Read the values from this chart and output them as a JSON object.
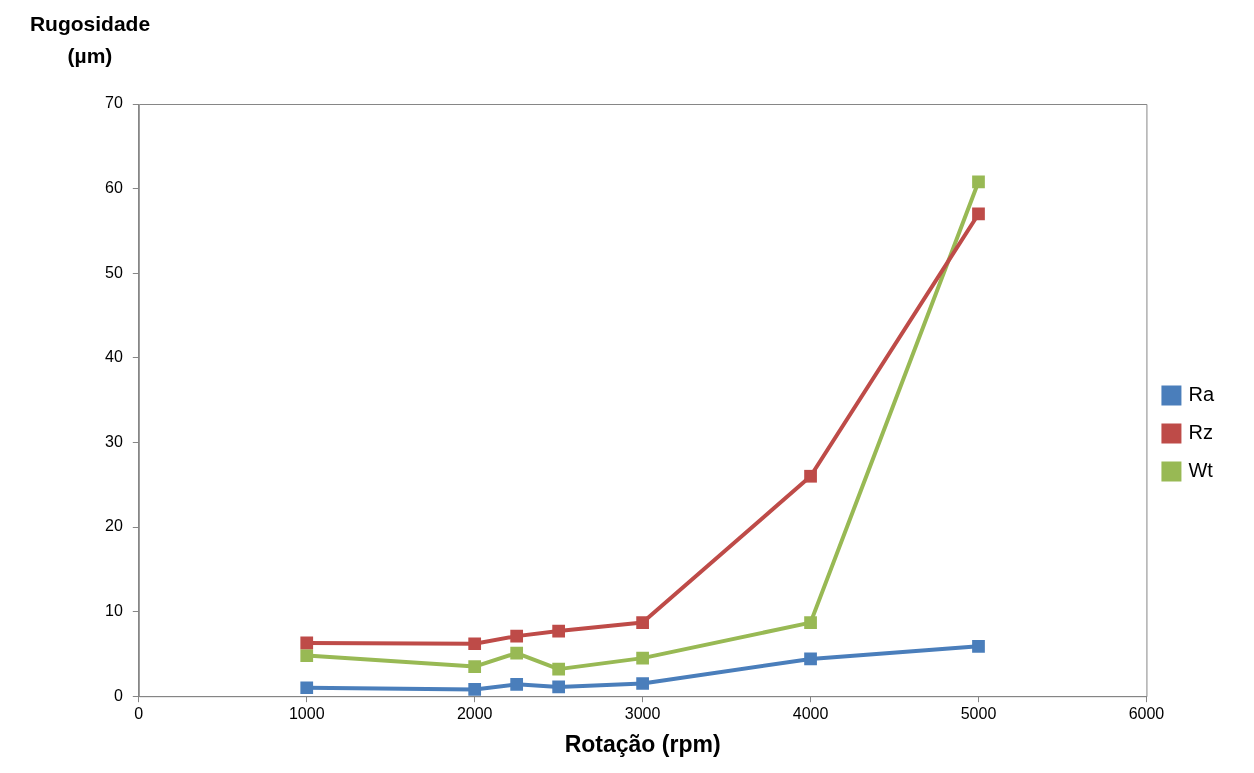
{
  "chart_data": {
    "type": "line",
    "xlabel": "Rotação (rpm)",
    "ylabel": "Rugosidade (µm)",
    "x": [
      1000,
      2000,
      2250,
      2500,
      3000,
      4000,
      5000
    ],
    "series": [
      {
        "name": "Ra",
        "color": "#4a7ebb",
        "values": [
          1.0,
          0.8,
          1.4,
          1.1,
          1.5,
          4.4,
          5.9
        ]
      },
      {
        "name": "Rz",
        "color": "#be4b48",
        "values": [
          6.3,
          6.2,
          7.1,
          7.7,
          8.7,
          26.0,
          57.0
        ]
      },
      {
        "name": "Wt",
        "color": "#98b954",
        "values": [
          4.8,
          3.5,
          5.1,
          3.2,
          4.5,
          8.7,
          60.8
        ]
      }
    ],
    "xlim": [
      0,
      6000
    ],
    "xticks": [
      0,
      1000,
      2000,
      3000,
      4000,
      5000,
      6000
    ],
    "ylim": [
      0,
      70
    ],
    "yticks": [
      0,
      10,
      20,
      30,
      40,
      50,
      60,
      70
    ],
    "grid": false,
    "legend": "right",
    "marker": "square",
    "line_style": "solid"
  }
}
